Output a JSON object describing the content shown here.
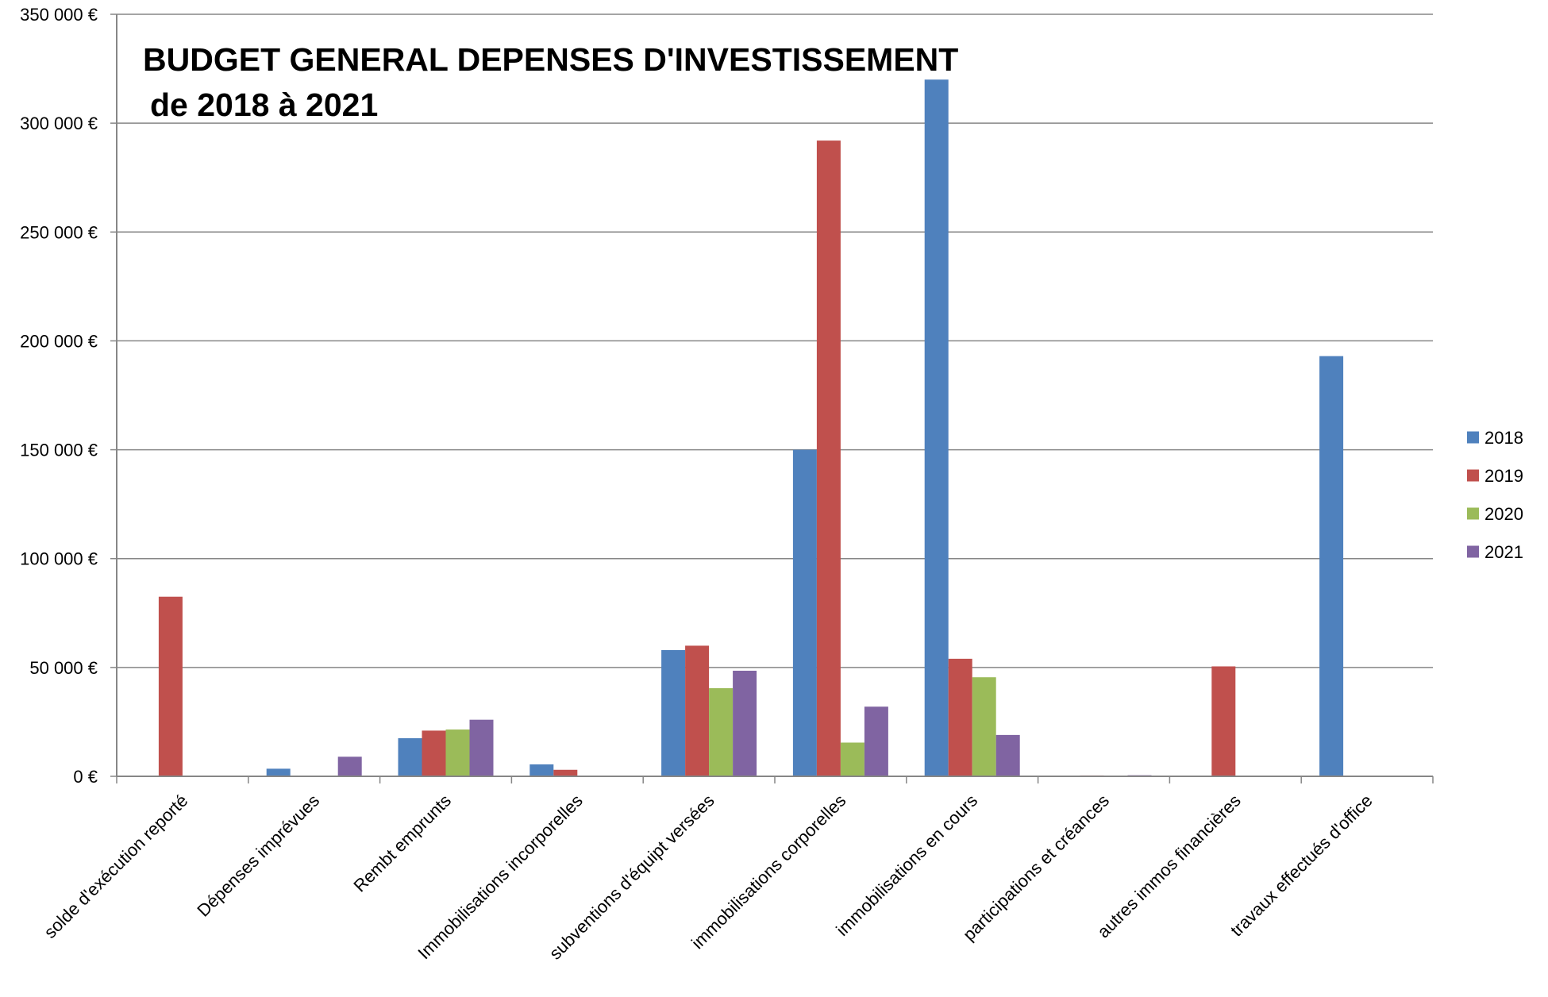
{
  "chart_data": {
    "type": "bar",
    "title": [
      "BUDGET GENERAL DEPENSES D'INVESTISSEMENT",
      "de 2018 à 2021"
    ],
    "categories": [
      "solde d'exécution reporté",
      "Dépenses imprévues",
      "Rembt emprunts",
      "Immobilisations incorporelles",
      "subventions d'équipt versées",
      "immobilisations corporelles",
      "immobilisations en cours",
      "participations et créances",
      "autres immos financières",
      "travaux effectués d'office"
    ],
    "series": [
      {
        "name": "2018",
        "color": "#4f81bd",
        "values": [
          0,
          3500,
          17500,
          5500,
          58000,
          150000,
          320000,
          0,
          0,
          193000
        ]
      },
      {
        "name": "2019",
        "color": "#c0504d",
        "values": [
          82500,
          0,
          21000,
          3000,
          60000,
          292000,
          54000,
          400,
          50500,
          0
        ]
      },
      {
        "name": "2020",
        "color": "#9bbb59",
        "values": [
          0,
          0,
          21500,
          0,
          40500,
          15500,
          45500,
          0,
          0,
          0
        ]
      },
      {
        "name": "2021",
        "color": "#8064a2",
        "values": [
          0,
          9000,
          26000,
          0,
          48500,
          32000,
          19000,
          500,
          0,
          0
        ]
      }
    ],
    "y_ticks": [
      "0 €",
      "50 000 €",
      "100 000 €",
      "150 000 €",
      "200 000 €",
      "250 000 €",
      "300 000 €",
      "350 000 €"
    ],
    "ylim": [
      0,
      350000
    ],
    "y_tick_step": 50000,
    "grid": true,
    "legend_position": "right"
  }
}
